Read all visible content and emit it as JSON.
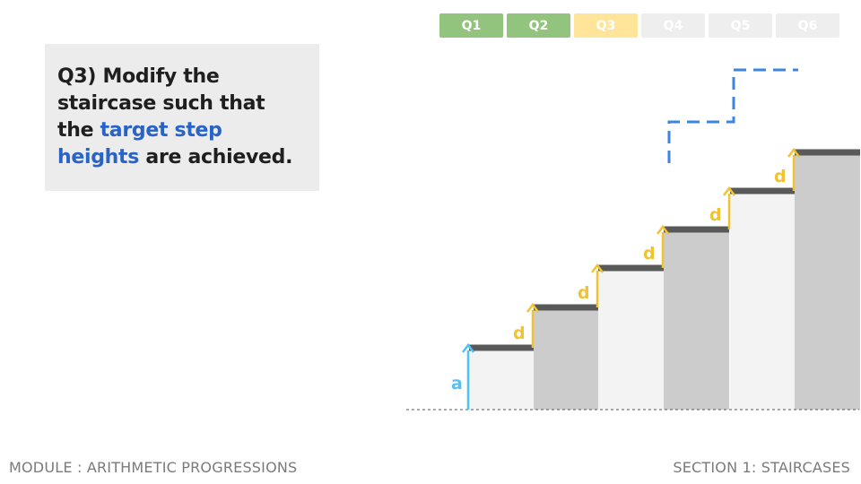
{
  "tabs": [
    {
      "label": "Q1",
      "state": "completed",
      "color": "#93c47d"
    },
    {
      "label": "Q2",
      "state": "completed",
      "color": "#93c47d"
    },
    {
      "label": "Q3",
      "state": "active",
      "color": "#ffe599"
    },
    {
      "label": "Q4",
      "state": "locked",
      "color": "#eeeeee"
    },
    {
      "label": "Q5",
      "state": "locked",
      "color": "#eeeeee"
    },
    {
      "label": "Q6",
      "state": "locked",
      "color": "#eeeeee"
    }
  ],
  "question": {
    "prefix": "Q3) Modify the staircase such that the",
    "highlight": "target step heights",
    "suffix": "are achieved."
  },
  "diagram": {
    "first_step_label": "a",
    "difference_label": "d",
    "colors": {
      "first_arrow": "#4fc3f7",
      "difference_arrow": "#f1c232",
      "target_line": "#3d85e0",
      "step_light": "#f3f3f3",
      "step_dark": "#cccccc",
      "step_cap": "#595959"
    }
  },
  "footer": {
    "module": "MODULE : ARITHMETIC PROGRESSIONS",
    "section": "SECTION 1: STAIRCASES"
  }
}
